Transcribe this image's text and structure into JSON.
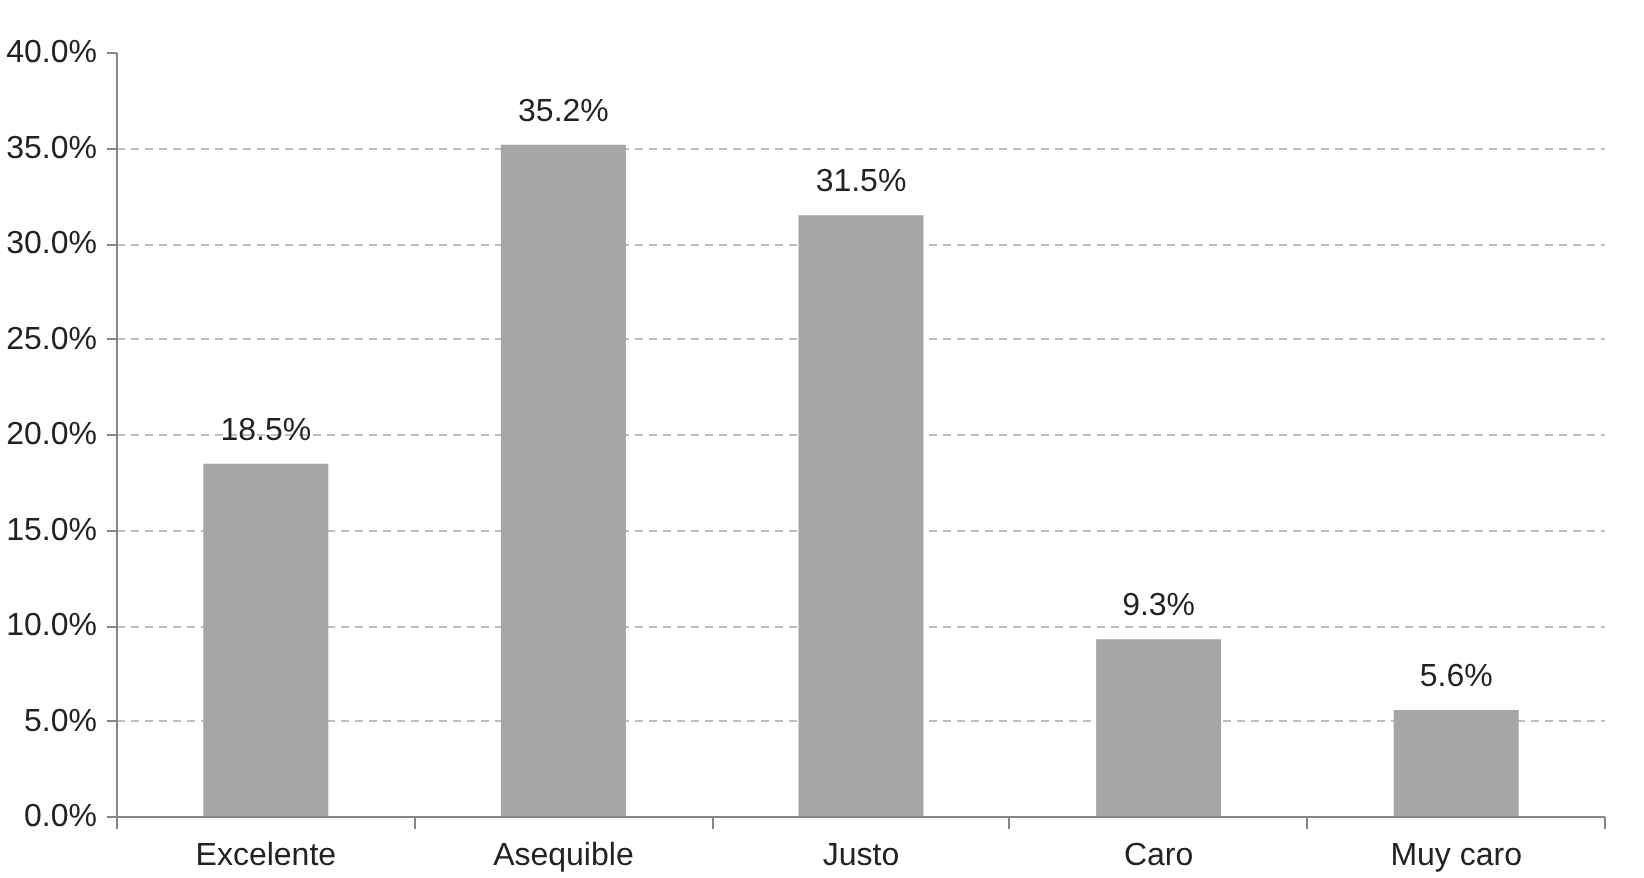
{
  "chart_data": {
    "type": "bar",
    "categories": [
      "Excelente",
      "Asequible",
      "Justo",
      "Caro",
      "Muy caro"
    ],
    "values": [
      18.5,
      35.2,
      31.5,
      9.3,
      5.6
    ],
    "value_labels": [
      "18.5%",
      "35.2%",
      "31.5%",
      "9.3%",
      "5.6%"
    ],
    "color": "#a6a6a6",
    "ylim": [
      0,
      40
    ],
    "yticks": [
      {
        "value": 0,
        "label": "0.0%"
      },
      {
        "value": 5,
        "label": "5.0%"
      },
      {
        "value": 10,
        "label": "10.0%"
      },
      {
        "value": 15,
        "label": "15.0%"
      },
      {
        "value": 20,
        "label": "20.0%"
      },
      {
        "value": 25,
        "label": "25.0%"
      },
      {
        "value": 30,
        "label": "30.0%"
      },
      {
        "value": 35,
        "label": "35.0%"
      },
      {
        "value": 40,
        "label": "40.0%"
      }
    ],
    "grid": "y"
  }
}
